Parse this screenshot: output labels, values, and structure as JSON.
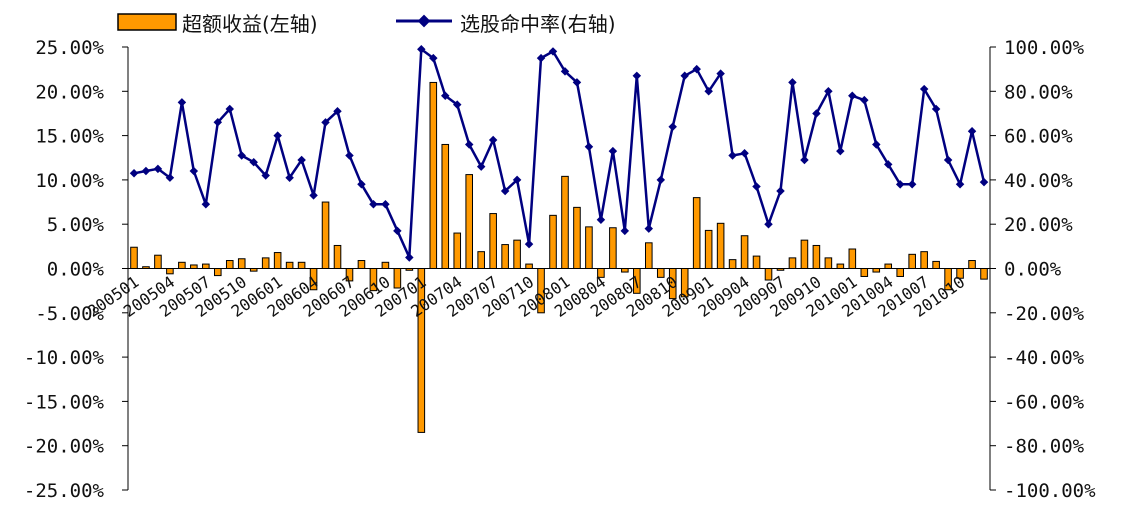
{
  "chart_data": {
    "type": "bar+line",
    "legend": {
      "position": "top",
      "bar_label": "超额收益(左轴)",
      "line_label": "选股命中率(右轴)"
    },
    "categories": [
      "200501",
      "200502",
      "200503",
      "200504",
      "200505",
      "200506",
      "200507",
      "200508",
      "200509",
      "200510",
      "200511",
      "200512",
      "200601",
      "200602",
      "200603",
      "200604",
      "200605",
      "200606",
      "200607",
      "200608",
      "200609",
      "200610",
      "200611",
      "200612",
      "200701",
      "200702",
      "200703",
      "200704",
      "200705",
      "200706",
      "200707",
      "200708",
      "200709",
      "200710",
      "200711",
      "200712",
      "200801",
      "200802",
      "200803",
      "200804",
      "200805",
      "200806",
      "200807",
      "200808",
      "200809",
      "200810",
      "200811",
      "200812",
      "200901",
      "200902",
      "200903",
      "200904",
      "200905",
      "200906",
      "200907",
      "200908",
      "200909",
      "200910",
      "200911",
      "200912",
      "201001",
      "201002",
      "201003",
      "201004",
      "201005",
      "201006",
      "201007",
      "201008",
      "201009",
      "201010",
      "201011",
      "201012"
    ],
    "x_tick_labels": [
      "200501",
      "200504",
      "200507",
      "200510",
      "200601",
      "200604",
      "200607",
      "200610",
      "200701",
      "200704",
      "200707",
      "200710",
      "200801",
      "200804",
      "200807",
      "200810",
      "200901",
      "200904",
      "200907",
      "200910",
      "201001",
      "201004",
      "201007",
      "201010"
    ],
    "left_axis": {
      "ylim": [
        -25,
        25
      ],
      "ticks": [
        "25.00%",
        "20.00%",
        "15.00%",
        "10.00%",
        "5.00%",
        "0.00%",
        "-5.00%",
        "-10.00%",
        "-15.00%",
        "-20.00%",
        "-25.00%"
      ]
    },
    "right_axis": {
      "ylim": [
        -100,
        100
      ],
      "ticks": [
        "100.00%",
        "80.00%",
        "60.00%",
        "40.00%",
        "20.00%",
        "0.00%",
        "-20.00%",
        "-40.00%",
        "-60.00%",
        "-80.00%",
        "-100.00%"
      ]
    },
    "series": [
      {
        "name": "超额收益(左轴)",
        "type": "bar",
        "axis": "left",
        "color": "#FF9900",
        "values": [
          2.4,
          0.2,
          1.5,
          -0.6,
          0.7,
          0.4,
          0.5,
          -0.8,
          0.9,
          1.1,
          -0.3,
          1.2,
          1.8,
          0.7,
          0.7,
          -2.4,
          7.5,
          2.6,
          -1.4,
          0.9,
          -2.5,
          0.7,
          -2.2,
          -0.2,
          -18.5,
          21.0,
          14.0,
          4.0,
          10.6,
          1.9,
          6.2,
          2.7,
          3.2,
          0.5,
          -5.0,
          6.0,
          10.4,
          6.9,
          4.7,
          -1.0,
          4.6,
          -0.4,
          -2.8,
          2.9,
          -1.0,
          -3.4,
          -3.2,
          8.0,
          4.3,
          5.1,
          1.0,
          3.7,
          1.4,
          -1.3,
          -0.2,
          1.2,
          3.2,
          2.6,
          1.2,
          0.5,
          2.2,
          -0.9,
          -0.4,
          0.5,
          -0.9,
          1.6,
          1.9,
          0.8,
          -2.4,
          -1.1,
          0.9,
          -1.2
        ]
      },
      {
        "name": "选股命中率(右轴)",
        "type": "line",
        "axis": "right",
        "color": "#000080",
        "values": [
          43,
          44,
          45,
          41,
          75,
          44,
          29,
          66,
          72,
          51,
          48,
          42,
          60,
          41,
          49,
          33,
          66,
          71,
          51,
          38,
          29,
          29,
          17,
          5,
          99,
          95,
          78,
          74,
          56,
          46,
          58,
          35,
          40,
          11,
          95,
          98,
          89,
          84,
          55,
          22,
          53,
          17,
          87,
          18,
          40,
          64,
          87,
          90,
          80,
          88,
          51,
          52,
          37,
          20,
          35,
          84,
          49,
          70,
          80,
          53,
          78,
          76,
          56,
          47,
          38,
          38,
          81,
          72,
          49,
          38,
          62,
          39
        ]
      }
    ]
  }
}
